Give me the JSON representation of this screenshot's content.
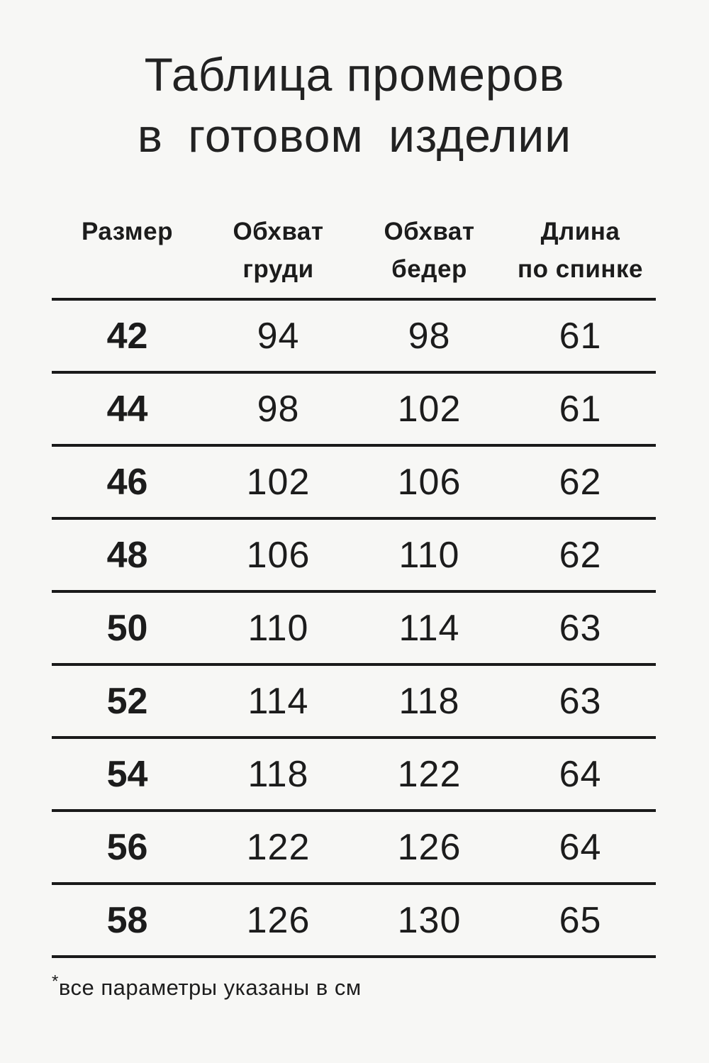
{
  "page": {
    "background_color": "#f7f7f5",
    "text_color": "#1c1c1c",
    "line_color": "#1a1a1a"
  },
  "title": {
    "line1": "Таблица промеров",
    "line2": "в готовом изделии"
  },
  "table": {
    "headers": [
      {
        "line1": "Размер",
        "line2": ""
      },
      {
        "line1": "Обхват",
        "line2": "груди"
      },
      {
        "line1": "Обхват",
        "line2": "бедер"
      },
      {
        "line1": "Длина",
        "line2": "по спинке"
      }
    ],
    "rows": [
      {
        "size": "42",
        "chest": "94",
        "hips": "98",
        "length": "61"
      },
      {
        "size": "44",
        "chest": "98",
        "hips": "102",
        "length": "61"
      },
      {
        "size": "46",
        "chest": "102",
        "hips": "106",
        "length": "62"
      },
      {
        "size": "48",
        "chest": "106",
        "hips": "110",
        "length": "62"
      },
      {
        "size": "50",
        "chest": "110",
        "hips": "114",
        "length": "63"
      },
      {
        "size": "52",
        "chest": "114",
        "hips": "118",
        "length": "63"
      },
      {
        "size": "54",
        "chest": "118",
        "hips": "122",
        "length": "64"
      },
      {
        "size": "56",
        "chest": "122",
        "hips": "126",
        "length": "64"
      },
      {
        "size": "58",
        "chest": "126",
        "hips": "130",
        "length": "65"
      }
    ],
    "units_note": "см"
  },
  "footnote": {
    "marker": "*",
    "text": "все параметры указаны в см"
  }
}
